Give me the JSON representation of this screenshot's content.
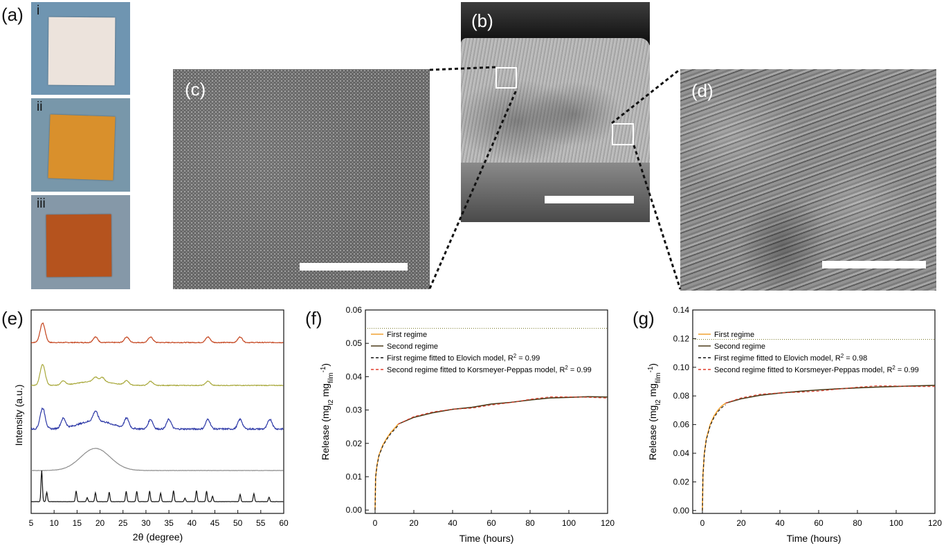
{
  "panels": {
    "a": {
      "label": "(a)",
      "items": [
        {
          "roman": "i",
          "color": "#ece3dc",
          "bg": "#6f95b1"
        },
        {
          "roman": "ii",
          "color": "#d9902c",
          "bg": "#7897aa"
        },
        {
          "roman": "iii",
          "color": "#b5531e",
          "bg": "#8598a8"
        }
      ]
    },
    "b": {
      "label": "(b)"
    },
    "c": {
      "label": "(c)"
    },
    "d": {
      "label": "(d)"
    },
    "e": {
      "label": "(e)"
    },
    "f": {
      "label": "(f)"
    },
    "g": {
      "label": "(g)"
    }
  },
  "chart_data": [
    {
      "id": "e",
      "type": "line",
      "xlabel": "2θ (degree)",
      "ylabel": "Intensity (a.u.)",
      "xlim": [
        5,
        60
      ],
      "x_ticks": [
        5,
        10,
        15,
        20,
        25,
        30,
        35,
        40,
        45,
        50,
        55,
        60
      ],
      "y_ticks_labeled": false,
      "series": [
        {
          "color": "#c4431c",
          "peaks": [
            7.5,
            19.0,
            25.8,
            31.0,
            43.5,
            50.5
          ]
        },
        {
          "color": "#a8a83a",
          "peaks": [
            7.5,
            12.0,
            19.0,
            20.5,
            25.8,
            31.0,
            43.5
          ]
        },
        {
          "color": "#2a36a6",
          "peaks": [
            7.5,
            12.0,
            19.0,
            25.8,
            31.0,
            35.0,
            43.5,
            50.5,
            57.0
          ]
        },
        {
          "color": "#8c8c8c",
          "peaks": [
            19.0
          ]
        },
        {
          "color": "#111111",
          "peaks": [
            7.3,
            8.4,
            14.8,
            17.2,
            19.0,
            22.0,
            25.7,
            28.0,
            30.8,
            33.2,
            36.0,
            38.5,
            41.0,
            43.2,
            44.5,
            50.5,
            53.5,
            56.8
          ]
        }
      ]
    },
    {
      "id": "f",
      "type": "line",
      "xlabel": "Time (hours)",
      "ylabel_main": "Release (mg",
      "ylabel_sub1": "I2",
      "ylabel_mid": " mg",
      "ylabel_sub2": "film",
      "ylabel_sup": "-1",
      "ylabel_end": ")",
      "xlim": [
        -5,
        120
      ],
      "ylim": [
        -0.001,
        0.06
      ],
      "x_ticks": [
        0,
        20,
        40,
        60,
        80,
        100,
        120
      ],
      "y_ticks": [
        0.0,
        0.01,
        0.02,
        0.03,
        0.04,
        0.05,
        0.06
      ],
      "y_tick_labels": [
        "0.00",
        "0.01",
        "0.02",
        "0.03",
        "0.04",
        "0.05",
        "0.06"
      ],
      "reference_line": 0.0545,
      "legend": [
        {
          "name": "First regime",
          "color": "#f0a030",
          "dash": ""
        },
        {
          "name": "Second regime",
          "color": "#4a3a18",
          "dash": ""
        },
        {
          "name": "First regime fitted to Elovich model, R",
          "sup": "2",
          "end": " = 0.99",
          "color": "#111111",
          "dash": "4,3"
        },
        {
          "name": "Second regime fitted to Korsmeyer-Peppas model, R",
          "sup": "2",
          "end": " = 0.99",
          "color": "#e03a2a",
          "dash": "4,3"
        }
      ],
      "first_regime": {
        "x": [
          0,
          0.3,
          1,
          2,
          4,
          6,
          8,
          10,
          12
        ],
        "y": [
          0,
          0.01,
          0.0135,
          0.0165,
          0.0195,
          0.0215,
          0.0232,
          0.0245,
          0.0258
        ]
      },
      "second_regime": {
        "x": [
          12,
          20,
          30,
          40,
          50,
          60,
          70,
          80,
          90,
          100,
          110,
          120
        ],
        "y": [
          0.0258,
          0.0278,
          0.0292,
          0.0302,
          0.0308,
          0.0318,
          0.0323,
          0.033,
          0.0336,
          0.0338,
          0.034,
          0.0339
        ]
      }
    },
    {
      "id": "g",
      "type": "line",
      "xlabel": "Time (hours)",
      "ylabel_main": "Release (mg",
      "ylabel_sub1": "I2",
      "ylabel_mid": " mg",
      "ylabel_sub2": "film",
      "ylabel_sup": "-1",
      "ylabel_end": ")",
      "xlim": [
        -5,
        120
      ],
      "ylim": [
        -0.002,
        0.14
      ],
      "x_ticks": [
        0,
        20,
        40,
        60,
        80,
        100,
        120
      ],
      "y_ticks": [
        0.0,
        0.02,
        0.04,
        0.06,
        0.08,
        0.1,
        0.12,
        0.14
      ],
      "y_tick_labels": [
        "0.00",
        "0.02",
        "0.04",
        "0.06",
        "0.08",
        "0.10",
        "0.12",
        "0.14"
      ],
      "reference_line": 0.1195,
      "legend": [
        {
          "name": "First regime",
          "color": "#f0a030",
          "dash": ""
        },
        {
          "name": "Second regime",
          "color": "#4a3a18",
          "dash": ""
        },
        {
          "name": "First regime fitted to Elovich model, R",
          "sup": "2",
          "end": " = 0.98",
          "color": "#111111",
          "dash": "4,3"
        },
        {
          "name": "Second regime fitted to Korsmeyer-Peppas model, R",
          "sup": "2",
          "end": " = 0.99",
          "color": "#e03a2a",
          "dash": "4,3"
        }
      ],
      "first_regime": {
        "x": [
          0,
          0.3,
          1,
          2,
          4,
          6,
          8,
          10,
          12
        ],
        "y": [
          0,
          0.025,
          0.04,
          0.05,
          0.06,
          0.066,
          0.07,
          0.073,
          0.075
        ]
      },
      "second_regime": {
        "x": [
          12,
          20,
          30,
          40,
          50,
          60,
          70,
          80,
          90,
          100,
          110,
          120
        ],
        "y": [
          0.075,
          0.078,
          0.0805,
          0.082,
          0.0832,
          0.0842,
          0.085,
          0.0856,
          0.0862,
          0.0866,
          0.087,
          0.0874
        ]
      }
    }
  ]
}
